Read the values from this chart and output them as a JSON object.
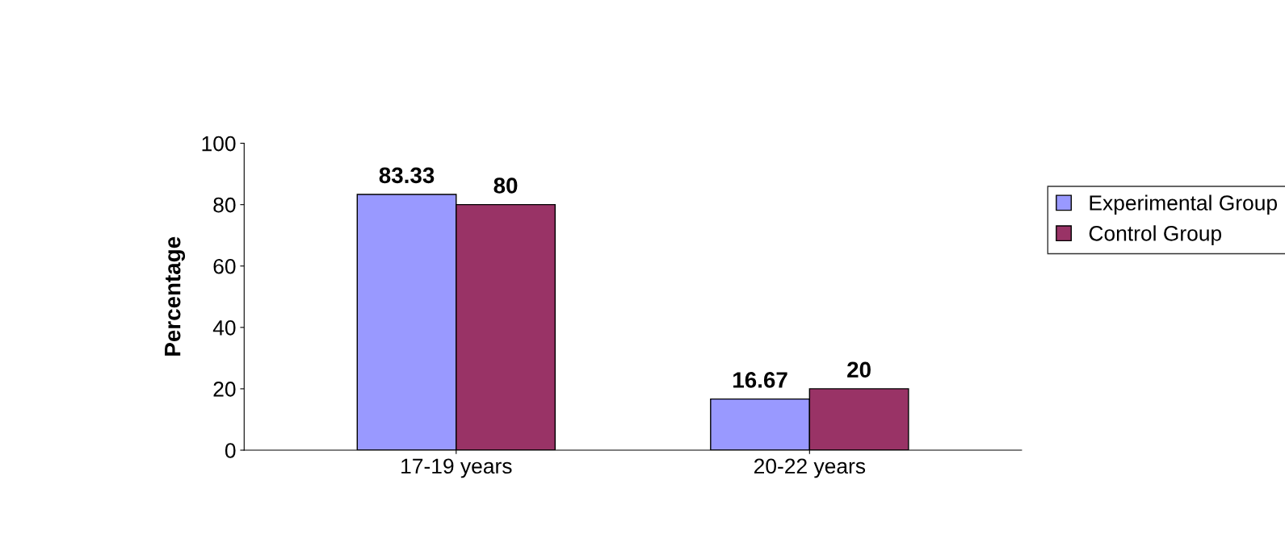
{
  "chart_data": {
    "type": "bar",
    "ylabel": "Percentage",
    "categories": [
      "17-19 years",
      "20-22 years"
    ],
    "series": [
      {
        "name": "Experimental Group",
        "color": "#9999ff",
        "values": [
          83.33,
          16.67
        ]
      },
      {
        "name": "Control Group",
        "color": "#993366",
        "values": [
          80,
          20
        ]
      }
    ],
    "ylim": [
      0,
      100
    ],
    "yticks": [
      0,
      20,
      40,
      60,
      80,
      100
    ],
    "data_labels": true,
    "legend": "right",
    "grid": false
  }
}
